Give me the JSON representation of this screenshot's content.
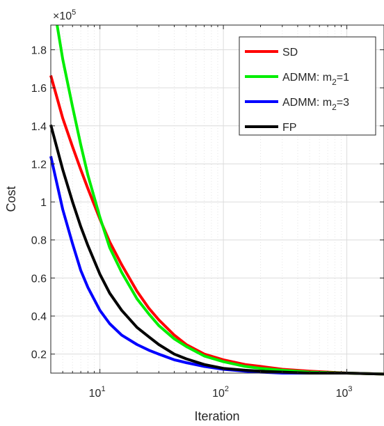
{
  "chart_data": {
    "type": "line",
    "xlabel": "Iteration",
    "ylabel": "Cost",
    "x_scale": "log",
    "xlim": [
      4,
      2000
    ],
    "ylim": [
      0.1,
      1.93
    ],
    "y_exponent_label": "×10",
    "y_exponent": "5",
    "x_ticks": [
      {
        "value": 10,
        "base": "10",
        "exp": "1"
      },
      {
        "value": 100,
        "base": "10",
        "exp": "2"
      },
      {
        "value": 1000,
        "base": "10",
        "exp": "3"
      }
    ],
    "y_ticks": [
      "0.2",
      "0.4",
      "0.6",
      "0.8",
      "1",
      "1.2",
      "1.4",
      "1.6",
      "1.8"
    ],
    "grid": true,
    "legend_position": "top-right",
    "series": [
      {
        "name": "SD",
        "label_main": "SD",
        "label_sub": "",
        "label_tail": "",
        "color": "#ff0000",
        "x": [
          4,
          5,
          6,
          7,
          8,
          10,
          12,
          15,
          20,
          25,
          30,
          40,
          50,
          70,
          100,
          150,
          200,
          300,
          500,
          1000,
          2000
        ],
        "y": [
          1.665,
          1.44,
          1.29,
          1.17,
          1.07,
          0.91,
          0.79,
          0.67,
          0.53,
          0.44,
          0.38,
          0.3,
          0.25,
          0.2,
          0.17,
          0.145,
          0.135,
          0.12,
          0.11,
          0.1,
          0.095
        ]
      },
      {
        "name": "ADMM: m2=1",
        "label_main": "ADMM: m",
        "label_sub": "2",
        "label_tail": "=1",
        "color": "#00ee00",
        "x": [
          4.5,
          5,
          6,
          7,
          8,
          10,
          12,
          15,
          20,
          25,
          30,
          40,
          50,
          70,
          100,
          150,
          200,
          300,
          500,
          1000,
          2000
        ],
        "y": [
          1.93,
          1.75,
          1.5,
          1.3,
          1.14,
          0.92,
          0.76,
          0.63,
          0.49,
          0.41,
          0.35,
          0.28,
          0.24,
          0.19,
          0.16,
          0.135,
          0.125,
          0.115,
          0.105,
          0.1,
          0.095
        ]
      },
      {
        "name": "ADMM: m2=3",
        "label_main": "ADMM: m",
        "label_sub": "2",
        "label_tail": "=3",
        "color": "#0000ff",
        "x": [
          4,
          5,
          6,
          7,
          8,
          10,
          12,
          15,
          20,
          25,
          30,
          40,
          50,
          70,
          100,
          150,
          200,
          300,
          500,
          1000
        ],
        "y": [
          1.24,
          0.96,
          0.78,
          0.64,
          0.55,
          0.43,
          0.36,
          0.3,
          0.25,
          0.22,
          0.2,
          0.17,
          0.155,
          0.135,
          0.12,
          0.11,
          0.105,
          0.1,
          0.1,
          0.1
        ]
      },
      {
        "name": "FP",
        "label_main": "FP",
        "label_sub": "",
        "label_tail": "",
        "color": "#000000",
        "x": [
          4,
          5,
          6,
          7,
          8,
          10,
          12,
          15,
          20,
          25,
          30,
          40,
          50,
          70,
          100,
          150,
          200,
          300,
          500,
          1000,
          2000
        ],
        "y": [
          1.405,
          1.17,
          1.0,
          0.87,
          0.77,
          0.62,
          0.52,
          0.43,
          0.34,
          0.29,
          0.25,
          0.2,
          0.175,
          0.145,
          0.125,
          0.115,
          0.11,
          0.105,
          0.1,
          0.1,
          0.095
        ]
      }
    ]
  }
}
